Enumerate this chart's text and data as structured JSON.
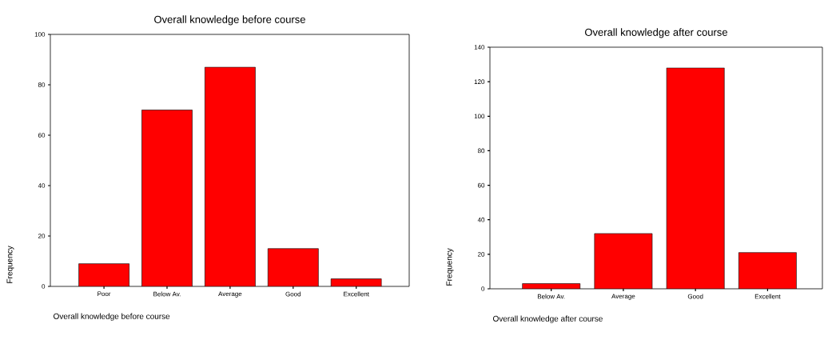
{
  "chart_data": [
    {
      "type": "bar",
      "title": "Overall knowledge before course",
      "xlabel": "Overall knowledge before course",
      "ylabel": "Frequency",
      "categories": [
        "Poor",
        "Below Av.",
        "Average",
        "Good",
        "Excellent"
      ],
      "values": [
        9,
        70,
        87,
        15,
        3
      ],
      "color": "#ff0000",
      "ylim": [
        0,
        100
      ],
      "yticks": [
        0,
        20,
        40,
        60,
        80,
        100
      ],
      "grid": false
    },
    {
      "type": "bar",
      "title": "Overall knowledge after course",
      "xlabel": "Overall knowledge after course",
      "ylabel": "Frequency",
      "categories": [
        "Below Av.",
        "Average",
        "Good",
        "Excellent"
      ],
      "values": [
        3,
        32,
        128,
        21
      ],
      "color": "#ff0000",
      "ylim": [
        0,
        140
      ],
      "yticks": [
        0,
        20,
        40,
        60,
        80,
        100,
        120,
        140
      ],
      "grid": false
    }
  ]
}
